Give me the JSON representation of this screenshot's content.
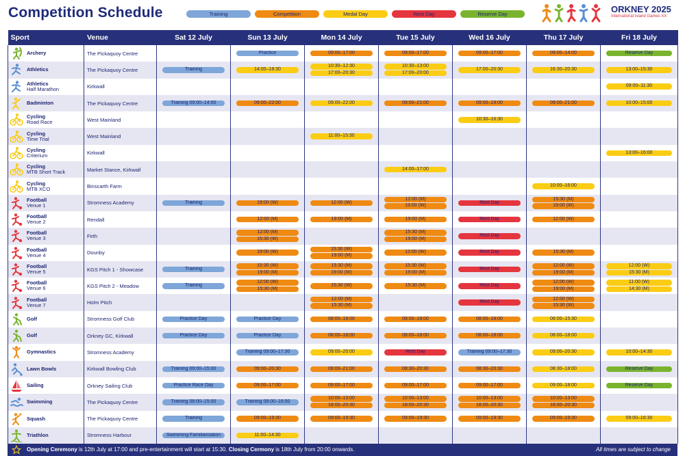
{
  "title": "Competition Schedule",
  "legend": [
    {
      "label": "Training",
      "cls": "t"
    },
    {
      "label": "Competition",
      "cls": "c"
    },
    {
      "label": "Medal Day",
      "cls": "m"
    },
    {
      "label": "Rest Day",
      "cls": "r"
    },
    {
      "label": "Reserve Day",
      "cls": "v"
    }
  ],
  "brand": {
    "name": "ORKNEY 2025",
    "subtitle": "International Island Games XX"
  },
  "columns": [
    "Sport",
    "Venue",
    "Sat 12 July",
    "Sun 13 July",
    "Mon 14 July",
    "Tue 15 July",
    "Wed 16 July",
    "Thu 17 July",
    "Fri 18 July"
  ],
  "icon_colors": {
    "green": "#7ab42e",
    "blue": "#5a8fd0",
    "orange": "#ef8a12",
    "yellow": "#fbcc14",
    "red": "#e5353e",
    "pink": "#e5353e"
  },
  "rows": [
    {
      "sport": "Archery",
      "sub": "",
      "venue": "The Pickaquoy Centre",
      "icon": "archery-icon",
      "color": "#7ab42e",
      "days": [
        [],
        [
          [
            "t",
            "Practice"
          ]
        ],
        [
          [
            "c",
            "09:00–17:00"
          ]
        ],
        [
          [
            "c",
            "09:00–17:00"
          ]
        ],
        [
          [
            "c",
            "09:00–17:00"
          ]
        ],
        [
          [
            "c",
            "09:00–14:00"
          ]
        ],
        [
          [
            "v",
            "Reserve Day"
          ]
        ]
      ]
    },
    {
      "sport": "Athletics",
      "sub": "",
      "venue": "The Pickaquoy Centre",
      "icon": "athletics-icon",
      "color": "#5a8fd0",
      "days": [
        [
          [
            "t",
            "Training"
          ]
        ],
        [
          [
            "m",
            "14:00–18:30"
          ]
        ],
        [
          [
            "m",
            "10:30–12:30"
          ],
          [
            "m",
            "17:00–20:30"
          ]
        ],
        [
          [
            "m",
            "10:30–13:00"
          ],
          [
            "m",
            "17:00–20:00"
          ]
        ],
        [
          [
            "m",
            "17:00–20:30"
          ]
        ],
        [
          [
            "m",
            "16:30–20:30"
          ]
        ],
        [
          [
            "m",
            "13:00–15:30"
          ]
        ]
      ]
    },
    {
      "sport": "Athletics",
      "sub": "Half Marathon",
      "venue": "Kirkwall",
      "icon": "athletics-icon",
      "color": "#5a8fd0",
      "days": [
        [],
        [],
        [],
        [],
        [],
        [],
        [
          [
            "m",
            "09:00–11:30"
          ]
        ]
      ]
    },
    {
      "sport": "Badminton",
      "sub": "",
      "venue": "The Pickaquoy Centre",
      "icon": "badminton-icon",
      "color": "#fbcc14",
      "days": [
        [
          [
            "t",
            "Training 09:00–14:00"
          ]
        ],
        [
          [
            "c",
            "09:00–22:00"
          ]
        ],
        [
          [
            "m",
            "09:00–22:00"
          ]
        ],
        [
          [
            "c",
            "09:00–21:00"
          ]
        ],
        [
          [
            "c",
            "09:00–19:00"
          ]
        ],
        [
          [
            "c",
            "09:00–21:00"
          ]
        ],
        [
          [
            "m",
            "10:00–15:00"
          ]
        ]
      ]
    },
    {
      "sport": "Cycling",
      "sub": "Road Race",
      "venue": "West Mainland",
      "icon": "cycling-icon",
      "color": "#fbcc14",
      "days": [
        [],
        [],
        [],
        [],
        [
          [
            "m",
            "10:30–16:30"
          ]
        ],
        [],
        []
      ]
    },
    {
      "sport": "Cycling",
      "sub": "Time Trial",
      "venue": "West Mainland",
      "icon": "cycling-icon",
      "color": "#fbcc14",
      "days": [
        [],
        [],
        [
          [
            "m",
            "11:00–15:30"
          ]
        ],
        [],
        [],
        [],
        []
      ]
    },
    {
      "sport": "Cycling",
      "sub": "Criterium",
      "venue": "Kirkwall",
      "icon": "cycling-icon",
      "color": "#fbcc14",
      "days": [
        [],
        [],
        [],
        [],
        [],
        [],
        [
          [
            "m",
            "13:00–16:00"
          ]
        ]
      ]
    },
    {
      "sport": "Cycling",
      "sub": "MTB  Short Track",
      "venue": "Market Stance, Kirkwall",
      "icon": "cycling-icon",
      "color": "#fbcc14",
      "days": [
        [],
        [],
        [],
        [
          [
            "m",
            "14:00–17:00"
          ]
        ],
        [],
        [],
        []
      ]
    },
    {
      "sport": "Cycling",
      "sub": "MTB XCO",
      "venue": "Binscarth Farm",
      "icon": "cycling-icon",
      "color": "#fbcc14",
      "days": [
        [],
        [],
        [],
        [],
        [],
        [
          [
            "m",
            "10:00–16:00"
          ]
        ],
        []
      ]
    },
    {
      "sport": "Football",
      "sub": "Venue 1",
      "venue": "Stromness Academy",
      "icon": "football-icon",
      "color": "#e5353e",
      "days": [
        [
          [
            "t",
            "Training"
          ]
        ],
        [
          [
            "c",
            "19:00 (W)"
          ]
        ],
        [
          [
            "c",
            "12:00 (W)"
          ]
        ],
        [
          [
            "c",
            "12:00 (M)"
          ],
          [
            "c",
            "19:00 (W)"
          ]
        ],
        [
          [
            "r",
            "Rest Day"
          ]
        ],
        [
          [
            "c",
            "15:30 (M)"
          ],
          [
            "c",
            "19:00 (W)"
          ]
        ],
        []
      ]
    },
    {
      "sport": "Football",
      "sub": "Venue 2",
      "venue": "Rendall",
      "icon": "football-icon",
      "color": "#e5353e",
      "days": [
        [],
        [
          [
            "c",
            "12:00 (M)"
          ]
        ],
        [
          [
            "c",
            "19:00 (M)"
          ]
        ],
        [
          [
            "c",
            "19:00 (M)"
          ]
        ],
        [
          [
            "r",
            "Rest Day"
          ]
        ],
        [
          [
            "c",
            "12:00 (W)"
          ]
        ],
        []
      ]
    },
    {
      "sport": "Football",
      "sub": "Venue 3",
      "venue": "Firth",
      "icon": "football-icon",
      "color": "#e5353e",
      "days": [
        [],
        [
          [
            "c",
            "12:00 (M)"
          ],
          [
            "c",
            "15:30 (W)"
          ]
        ],
        [],
        [
          [
            "c",
            "15:30 (M)"
          ],
          [
            "c",
            "19:00 (M)"
          ]
        ],
        [
          [
            "r",
            "Rest Day"
          ]
        ],
        [],
        []
      ]
    },
    {
      "sport": "Football",
      "sub": "Venue 4",
      "venue": "Dounby",
      "icon": "football-icon",
      "color": "#e5353e",
      "days": [
        [],
        [
          [
            "c",
            "19:00 (W)"
          ]
        ],
        [
          [
            "c",
            "15:30 (W)"
          ],
          [
            "c",
            "19:00 (M)"
          ]
        ],
        [
          [
            "c",
            "12:00 (W)"
          ]
        ],
        [
          [
            "r",
            "Rest Day"
          ]
        ],
        [
          [
            "c",
            "15:30 (M)"
          ]
        ],
        []
      ]
    },
    {
      "sport": "Football",
      "sub": "Venue 5",
      "venue": "KGS Pitch 1 - Showcase",
      "icon": "football-icon",
      "color": "#e5353e",
      "days": [
        [
          [
            "t",
            "Training"
          ]
        ],
        [
          [
            "c",
            "15:30 (W)"
          ],
          [
            "c",
            "19:00 (M)"
          ]
        ],
        [
          [
            "c",
            "15:30 (M)"
          ],
          [
            "c",
            "19:00 (W)"
          ]
        ],
        [
          [
            "c",
            "15:30 (W)"
          ],
          [
            "c",
            "19:00 (M)"
          ]
        ],
        [
          [
            "r",
            "Rest Day"
          ]
        ],
        [
          [
            "c",
            "12:00 (W)"
          ],
          [
            "c",
            "19:00 (M)"
          ]
        ],
        [
          [
            "m",
            "12:00 (W)"
          ],
          [
            "m",
            "15:30 (M)"
          ]
        ]
      ]
    },
    {
      "sport": "Football",
      "sub": "Venue 6",
      "venue": "KGS Pitch 2 - Meadow",
      "icon": "football-icon",
      "color": "#e5353e",
      "days": [
        [
          [
            "t",
            "Training"
          ]
        ],
        [
          [
            "c",
            "12:00 (W)"
          ],
          [
            "c",
            "15:30 (M)"
          ]
        ],
        [
          [
            "c",
            "15:30 (W)"
          ]
        ],
        [
          [
            "c",
            "15:30 (M)"
          ]
        ],
        [
          [
            "r",
            "Rest Day"
          ]
        ],
        [
          [
            "c",
            "12:00 (W)"
          ],
          [
            "c",
            "19:00 (M)"
          ]
        ],
        [
          [
            "m",
            "11:00 (W)"
          ],
          [
            "m",
            "14:30 (M)"
          ]
        ]
      ]
    },
    {
      "sport": "Football",
      "sub": "Venue 7",
      "venue": "Holm Pitch",
      "icon": "football-icon",
      "color": "#e5353e",
      "days": [
        [],
        [],
        [
          [
            "c",
            "12:00 (M)"
          ],
          [
            "c",
            "15:30 (M)"
          ]
        ],
        [],
        [
          [
            "r",
            "Rest Day"
          ]
        ],
        [
          [
            "c",
            "12:00 (W)"
          ],
          [
            "c",
            "15:30 (W)"
          ]
        ],
        []
      ]
    },
    {
      "sport": "Golf",
      "sub": "",
      "venue": "Stromness Golf Club",
      "icon": "golf-icon",
      "color": "#7ab42e",
      "days": [
        [
          [
            "t",
            "Practice Day"
          ]
        ],
        [
          [
            "t",
            "Practice Day"
          ]
        ],
        [
          [
            "c",
            "08:00–18:00"
          ]
        ],
        [
          [
            "c",
            "08:00–18:00"
          ]
        ],
        [
          [
            "c",
            "08:00–18:00"
          ]
        ],
        [
          [
            "m",
            "08:00–15:30"
          ]
        ],
        []
      ]
    },
    {
      "sport": "Golf",
      "sub": "",
      "venue": "Orkney GC, Kirkwall",
      "icon": "golf-icon",
      "color": "#7ab42e",
      "days": [
        [
          [
            "t",
            "Practice Day"
          ]
        ],
        [
          [
            "t",
            "Practice Day"
          ]
        ],
        [
          [
            "c",
            "08:00–18:00"
          ]
        ],
        [
          [
            "c",
            "08:00–18:00"
          ]
        ],
        [
          [
            "c",
            "08:00–18:00"
          ]
        ],
        [
          [
            "m",
            "08:00–18:00"
          ]
        ],
        []
      ]
    },
    {
      "sport": "Gymnastics",
      "sub": "",
      "venue": "Stromness Academy",
      "icon": "gymnastics-icon",
      "color": "#ef8a12",
      "days": [
        [],
        [
          [
            "t",
            "Training 09:00–17:30"
          ]
        ],
        [
          [
            "m",
            "09:00–20:00"
          ]
        ],
        [
          [
            "r",
            "Rest Day"
          ]
        ],
        [
          [
            "t",
            "Training 09:00–17:30"
          ]
        ],
        [
          [
            "m",
            "09:00–20:30"
          ]
        ],
        [
          [
            "m",
            "10:00–14:30"
          ]
        ]
      ]
    },
    {
      "sport": "Lawn Bowls",
      "sub": "",
      "venue": "Kirkwall Bowling Club",
      "icon": "lawn-bowls-icon",
      "color": "#5a8fd0",
      "days": [
        [
          [
            "t",
            "Training 09:00–15:00"
          ]
        ],
        [
          [
            "c",
            "09:00–20:30"
          ]
        ],
        [
          [
            "c",
            "09:00–21:00"
          ]
        ],
        [
          [
            "c",
            "08:30–20:30"
          ]
        ],
        [
          [
            "c",
            "08:30–20:30"
          ]
        ],
        [
          [
            "m",
            "08:30–18:00"
          ]
        ],
        [
          [
            "v",
            "Reserve Day"
          ]
        ]
      ]
    },
    {
      "sport": "Sailing",
      "sub": "",
      "venue": "Orkney Sailing Club",
      "icon": "sailing-icon",
      "color": "#e5353e",
      "days": [
        [
          [
            "t",
            "Practice Race Day"
          ]
        ],
        [
          [
            "c",
            "09:00–17:00"
          ]
        ],
        [
          [
            "c",
            "09:00–17:00"
          ]
        ],
        [
          [
            "c",
            "09:00–17:00"
          ]
        ],
        [
          [
            "c",
            "09:00–17:00"
          ]
        ],
        [
          [
            "m",
            "09:00–18:00"
          ]
        ],
        [
          [
            "v",
            "Reserve Day"
          ]
        ]
      ]
    },
    {
      "sport": "Swimming",
      "sub": "",
      "venue": "The Pickaquoy Centre",
      "icon": "swimming-icon",
      "color": "#5a8fd0",
      "days": [
        [
          [
            "t",
            "Training 08:00–15:00"
          ]
        ],
        [
          [
            "t",
            "Training 08:00–16:00"
          ]
        ],
        [
          [
            "c",
            "10:00–13:00"
          ],
          [
            "c",
            "18:00–20:30"
          ]
        ],
        [
          [
            "c",
            "10:00–13:00"
          ],
          [
            "c",
            "18:00–20:30"
          ]
        ],
        [
          [
            "c",
            "10:00–13:00"
          ],
          [
            "c",
            "18:00–20:30"
          ]
        ],
        [
          [
            "c",
            "10:00–13:00"
          ],
          [
            "c",
            "18:00–20:30"
          ]
        ],
        []
      ]
    },
    {
      "sport": "Squash",
      "sub": "",
      "venue": "The Pickaquoy Centre",
      "icon": "squash-icon",
      "color": "#ef8a12",
      "days": [
        [
          [
            "t",
            "Training"
          ]
        ],
        [
          [
            "c",
            "09:00–19:30"
          ]
        ],
        [
          [
            "c",
            "09:00–19:30"
          ]
        ],
        [
          [
            "c",
            "09:00–19:30"
          ]
        ],
        [
          [
            "c",
            "09:00–19:30"
          ]
        ],
        [
          [
            "c",
            "09:00–19:30"
          ]
        ],
        [
          [
            "m",
            "09:00–16:30"
          ]
        ]
      ]
    },
    {
      "sport": "Triathlon",
      "sub": "",
      "venue": "Stromness Harbour",
      "icon": "triathlon-icon",
      "color": "#7ab42e",
      "days": [
        [
          [
            "t",
            "Swimming Familiarisation"
          ]
        ],
        [
          [
            "m",
            "11:00–14:30"
          ]
        ],
        [],
        [],
        [],
        [],
        []
      ]
    }
  ],
  "footer": {
    "opening_label": "Opening Ceremony",
    "opening_text": " is 12th July at 17:00 and pre-entertainment will start at 15:30. ",
    "closing_label": "Closing Cermony",
    "closing_text": " is 18th July from 20:00 onwards.",
    "note": "All times are subject to change"
  }
}
